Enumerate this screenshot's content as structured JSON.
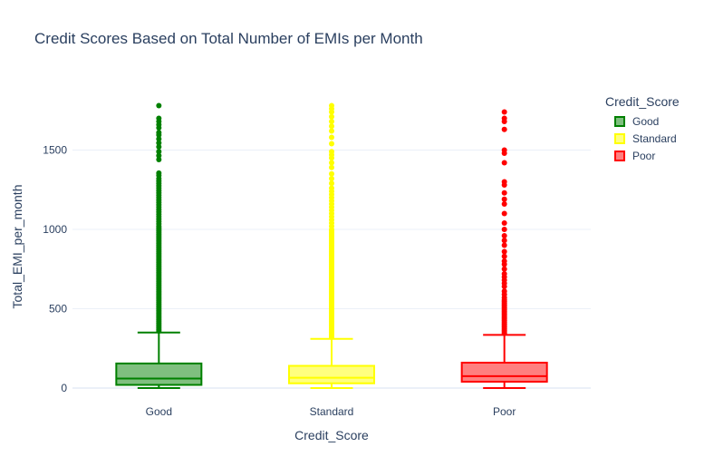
{
  "chart_data": {
    "type": "box",
    "title": "Credit Scores Based on Total Number of EMIs per Month",
    "xlabel": "Credit_Score",
    "ylabel": "Total_EMI_per_month",
    "ylim": [
      -30,
      1840
    ],
    "yticks": [
      0,
      500,
      1000,
      1500
    ],
    "grid": true,
    "legend_title": "Credit_Score",
    "legend_position": "top-right",
    "categories": [
      "Good",
      "Standard",
      "Poor"
    ],
    "series": [
      {
        "name": "Good",
        "color": "#008000",
        "fill": "rgba(0,128,0,0.5)",
        "min": 0,
        "q1": 20,
        "median": 60,
        "q3": 155,
        "max": 350,
        "outliers": [
          360,
          370,
          380,
          390,
          400,
          410,
          420,
          430,
          440,
          450,
          460,
          470,
          480,
          490,
          500,
          510,
          520,
          530,
          540,
          550,
          560,
          570,
          580,
          590,
          600,
          610,
          620,
          630,
          640,
          650,
          660,
          670,
          680,
          690,
          700,
          710,
          720,
          730,
          740,
          750,
          760,
          770,
          780,
          790,
          800,
          810,
          820,
          830,
          840,
          850,
          860,
          870,
          880,
          890,
          900,
          910,
          920,
          930,
          940,
          950,
          960,
          970,
          980,
          990,
          1000,
          1010,
          1020,
          1035,
          1050,
          1065,
          1080,
          1095,
          1110,
          1125,
          1140,
          1155,
          1170,
          1185,
          1200,
          1215,
          1230,
          1245,
          1260,
          1275,
          1290,
          1305,
          1320,
          1340,
          1355,
          1440,
          1465,
          1490,
          1520,
          1545,
          1570,
          1595,
          1610,
          1640,
          1660,
          1680,
          1700,
          1780
        ]
      },
      {
        "name": "Standard",
        "color": "#ffff00",
        "fill": "rgba(255,255,0,0.5)",
        "min": 0,
        "q1": 30,
        "median": 65,
        "q3": 140,
        "max": 310,
        "outliers": [
          320,
          330,
          340,
          350,
          360,
          370,
          380,
          390,
          400,
          410,
          420,
          430,
          440,
          450,
          460,
          470,
          480,
          490,
          500,
          510,
          520,
          530,
          540,
          550,
          560,
          570,
          580,
          590,
          600,
          610,
          620,
          630,
          640,
          650,
          660,
          670,
          680,
          690,
          700,
          710,
          720,
          730,
          740,
          750,
          760,
          770,
          780,
          790,
          800,
          810,
          820,
          830,
          840,
          850,
          860,
          870,
          880,
          890,
          900,
          910,
          920,
          930,
          940,
          950,
          960,
          970,
          980,
          990,
          1000,
          1020,
          1040,
          1060,
          1080,
          1100,
          1120,
          1140,
          1160,
          1180,
          1200,
          1220,
          1240,
          1260,
          1290,
          1320,
          1350,
          1390,
          1420,
          1450,
          1470,
          1490,
          1540,
          1580,
          1620,
          1650,
          1680,
          1710,
          1740,
          1760,
          1780
        ]
      },
      {
        "name": "Poor",
        "color": "#ff0000",
        "fill": "rgba(255,0,0,0.5)",
        "min": 0,
        "q1": 40,
        "median": 75,
        "q3": 160,
        "max": 335,
        "outliers": [
          345,
          355,
          365,
          375,
          385,
          395,
          405,
          415,
          425,
          435,
          445,
          455,
          465,
          475,
          485,
          495,
          505,
          515,
          525,
          535,
          545,
          555,
          570,
          590,
          610,
          640,
          660,
          680,
          700,
          720,
          750,
          780,
          800,
          830,
          860,
          900,
          930,
          960,
          1000,
          1040,
          1100,
          1160,
          1190,
          1230,
          1280,
          1300,
          1420,
          1480,
          1500,
          1630,
          1680,
          1700,
          1740
        ]
      }
    ]
  }
}
